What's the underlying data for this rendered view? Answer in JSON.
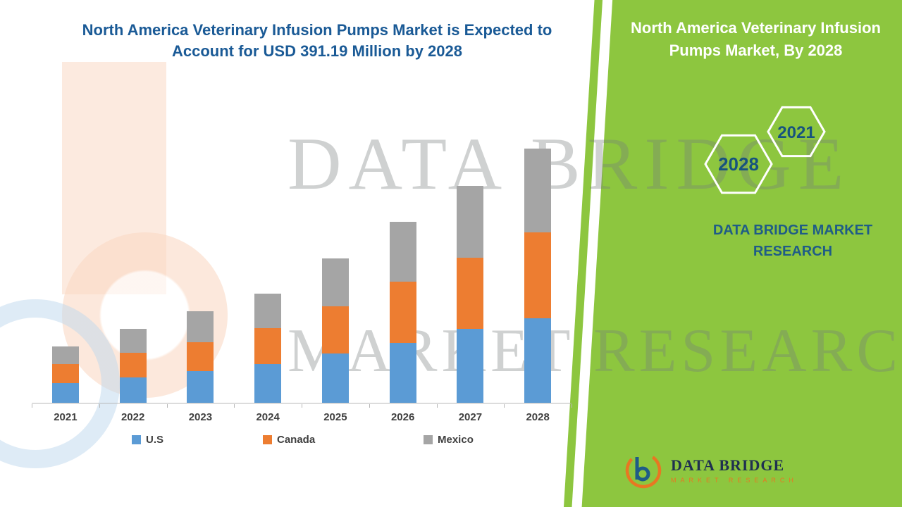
{
  "page": {
    "title": "North America Veterinary Infusion Pumps Market is Expected to Account for USD 391.19 Million by 2028"
  },
  "side_panel": {
    "heading": "North America Veterinary Infusion Pumps Market, By 2028",
    "hexagons": [
      {
        "year": "2028"
      },
      {
        "year": "2021"
      }
    ],
    "caption": "DATA BRIDGE MARKET RESEARCH"
  },
  "watermark": {
    "line1": "DATA BRIDGE",
    "line2": "MARKET RESEARCH"
  },
  "footer_logo": {
    "brand": "DATA BRIDGE",
    "tagline": "MARKET RESEARCH"
  },
  "colors": {
    "panel_green": "#8DC63F",
    "title_blue": "#1A5A96",
    "caption_blue": "#1F5C87",
    "us_blue": "#5B9BD5",
    "canada_orange": "#ED7D31",
    "mexico_gray": "#A5A5A5"
  },
  "chart_data": {
    "type": "bar",
    "stacked": true,
    "title": "North America Veterinary Infusion Pumps Market is Expected to Account for USD 391.19 Million by 2028",
    "unit": "USD Million",
    "categories": [
      "2021",
      "2022",
      "2023",
      "2024",
      "2025",
      "2026",
      "2027",
      "2028"
    ],
    "series": [
      {
        "name": "U.S",
        "color": "#5B9BD5",
        "values": [
          30.2,
          38.8,
          48.5,
          59.3,
          75.4,
          92.7,
          114.2,
          130.4
        ]
      },
      {
        "name": "Canada",
        "color": "#ED7D31",
        "values": [
          28.9,
          37.7,
          45.3,
          56.0,
          73.3,
          93.8,
          108.9,
          131.5
        ]
      },
      {
        "name": "Mexico",
        "color": "#A5A5A5",
        "values": [
          27.9,
          37.6,
          47.4,
          52.8,
          73.3,
          92.7,
          111.0,
          129.3
        ]
      }
    ],
    "totals_note": "2028 stacked total equals 391.19 (values for other years estimated from bar heights)",
    "ylim": [
      0,
      400
    ],
    "grid": false,
    "legend_position": "bottom",
    "xlabel": "",
    "ylabel": ""
  }
}
